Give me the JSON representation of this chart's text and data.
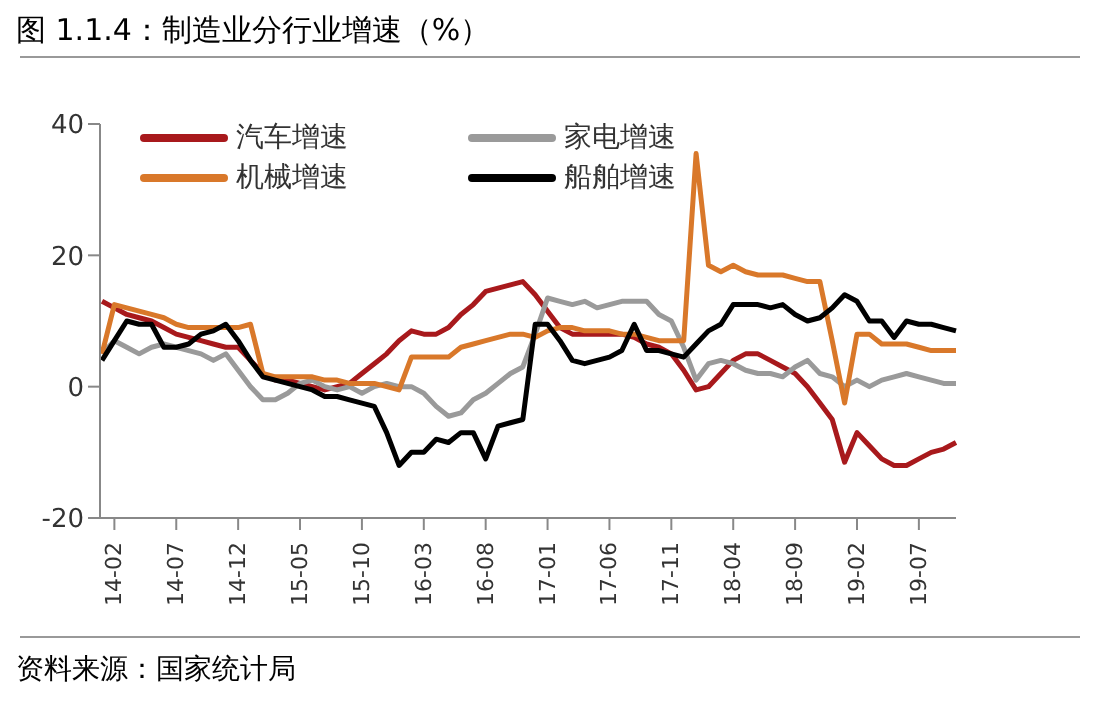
{
  "chart_data": {
    "type": "line",
    "title": "图 1.1.4：制造业分行业增速（%）",
    "annotations": [
      "资料来源：国家统计局"
    ],
    "categories": [
      null,
      "14-02",
      null,
      null,
      null,
      null,
      "14-07",
      null,
      null,
      null,
      null,
      "14-12",
      null,
      null,
      null,
      null,
      "15-05",
      null,
      null,
      null,
      null,
      "15-10",
      null,
      null,
      null,
      null,
      "16-03",
      null,
      null,
      null,
      null,
      "16-08",
      null,
      null,
      null,
      null,
      "17-01",
      null,
      null,
      null,
      null,
      "17-06",
      null,
      null,
      null,
      null,
      "17-11",
      null,
      null,
      null,
      null,
      "18-04",
      null,
      null,
      null,
      null,
      "18-09",
      null,
      null,
      null,
      null,
      "19-02",
      null,
      null,
      null,
      null,
      "19-07",
      null,
      null,
      null
    ],
    "ylim": [
      -20,
      40
    ],
    "yticks": [
      -20,
      0,
      20,
      40
    ],
    "grid": false,
    "legend": "top",
    "marker": "none",
    "line_style": "solid",
    "series": [
      {
        "name": "汽车增速",
        "color": "#a8191c",
        "values": [
          13,
          12,
          11,
          10.5,
          10,
          9,
          8,
          7.5,
          7,
          6.5,
          6,
          6,
          4,
          2,
          1,
          1,
          0.5,
          0,
          -0.5,
          0,
          0.5,
          2,
          3.5,
          5,
          7,
          8.5,
          8,
          8,
          9,
          11,
          12.5,
          14.5,
          15,
          15.5,
          16,
          14,
          11.5,
          9,
          8,
          8,
          8,
          8,
          8,
          7.5,
          6.5,
          6,
          5,
          2.5,
          -0.5,
          0,
          2,
          4,
          5,
          5,
          4,
          3,
          2,
          0,
          -2.5,
          -5,
          -11.5,
          -7,
          -9,
          -11,
          -12,
          -12,
          -11,
          -10,
          -9.5,
          -8.5
        ]
      },
      {
        "name": "家电增速",
        "color": "#9a9a9a",
        "values": [
          5,
          7,
          6,
          5,
          6,
          6.5,
          6,
          5.5,
          5,
          4,
          5,
          2.5,
          0,
          -2,
          -2,
          -1,
          0.5,
          1,
          0,
          -0.5,
          0,
          -1,
          0,
          0.5,
          0,
          0,
          -1,
          -3,
          -4.5,
          -4,
          -2,
          -1,
          0.5,
          2,
          3,
          8,
          13.5,
          13,
          12.5,
          13,
          12,
          12.5,
          13,
          13,
          13,
          11,
          10,
          6,
          1,
          3.5,
          4,
          3.5,
          2.5,
          2,
          2,
          1.5,
          3,
          4,
          2,
          1.5,
          0,
          1,
          0,
          1,
          1.5,
          2,
          1.5,
          1,
          0.5,
          0.5
        ]
      },
      {
        "name": "机械增速",
        "color": "#d9782a",
        "values": [
          5,
          12.5,
          12,
          11.5,
          11,
          10.5,
          9.5,
          9,
          9,
          9,
          9,
          9,
          9.5,
          2,
          1.5,
          1.5,
          1.5,
          1.5,
          1,
          1,
          0.5,
          0.5,
          0.5,
          0,
          -0.5,
          4.5,
          4.5,
          4.5,
          4.5,
          6,
          6.5,
          7,
          7.5,
          8,
          8,
          7.5,
          8.5,
          9,
          9,
          8.5,
          8.5,
          8.5,
          8,
          8,
          7.5,
          7,
          7,
          7,
          35.5,
          18.5,
          17.5,
          18.5,
          17.5,
          17,
          17,
          17,
          16.5,
          16,
          16,
          7,
          -2.5,
          8,
          8,
          6.5,
          6.5,
          6.5,
          6,
          5.5,
          5.5,
          5.5
        ]
      },
      {
        "name": "船舶增速",
        "color": "#000000",
        "values": [
          4,
          7,
          10,
          9.5,
          9.5,
          6,
          6,
          6.5,
          8,
          8.5,
          9.5,
          7,
          4,
          1.5,
          1,
          0.5,
          0,
          -0.5,
          -1.5,
          -1.5,
          -2,
          -2.5,
          -3,
          -7,
          -12,
          -10,
          -10,
          -8,
          -8.5,
          -7,
          -7,
          -11,
          -6,
          -5.5,
          -5,
          9.5,
          9.5,
          7,
          4,
          3.5,
          4,
          4.5,
          5.5,
          9.5,
          5.5,
          5.5,
          5,
          4.5,
          6.5,
          8.5,
          9.5,
          12.5,
          12.5,
          12.5,
          12,
          12.5,
          11,
          10,
          10.5,
          12,
          14,
          13,
          10,
          10,
          7.5,
          10,
          9.5,
          9.5,
          9,
          8.5
        ]
      }
    ]
  }
}
